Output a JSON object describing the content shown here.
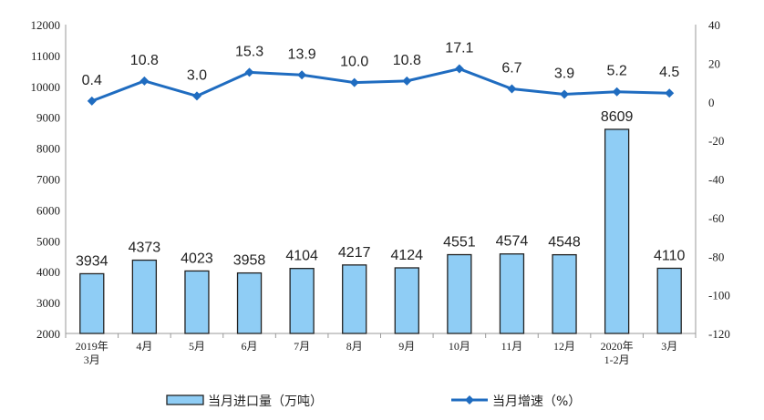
{
  "chart_data": {
    "type": "bar+line",
    "categories": [
      [
        "2019年",
        "3月"
      ],
      [
        "4月"
      ],
      [
        "5月"
      ],
      [
        "6月"
      ],
      [
        "7月"
      ],
      [
        "8月"
      ],
      [
        "9月"
      ],
      [
        "10月"
      ],
      [
        "11月"
      ],
      [
        "12月"
      ],
      [
        "2020年",
        "1-2月"
      ],
      [
        "3月"
      ]
    ],
    "series": [
      {
        "name": "当月进口量（万吨）",
        "type": "bar",
        "axis": "left",
        "color": "#8fcdf5",
        "values": [
          3934,
          4373,
          4023,
          3958,
          4104,
          4217,
          4124,
          4551,
          4574,
          4548,
          8609,
          4110
        ]
      },
      {
        "name": "当月增速（%）",
        "type": "line",
        "axis": "right",
        "color": "#1f6cc0",
        "values": [
          0.4,
          10.8,
          3.0,
          15.3,
          13.9,
          10.0,
          10.8,
          17.1,
          6.7,
          3.9,
          5.2,
          4.5
        ]
      }
    ],
    "left_axis": {
      "range": [
        2000,
        12000
      ],
      "ticks": [
        2000,
        3000,
        4000,
        5000,
        6000,
        7000,
        8000,
        9000,
        10000,
        11000,
        12000
      ]
    },
    "right_axis": {
      "range": [
        -120,
        40
      ],
      "ticks": [
        -120,
        -100,
        -80,
        -60,
        -40,
        -20,
        0,
        20,
        40
      ]
    },
    "legend": "bottom",
    "grid": false
  }
}
